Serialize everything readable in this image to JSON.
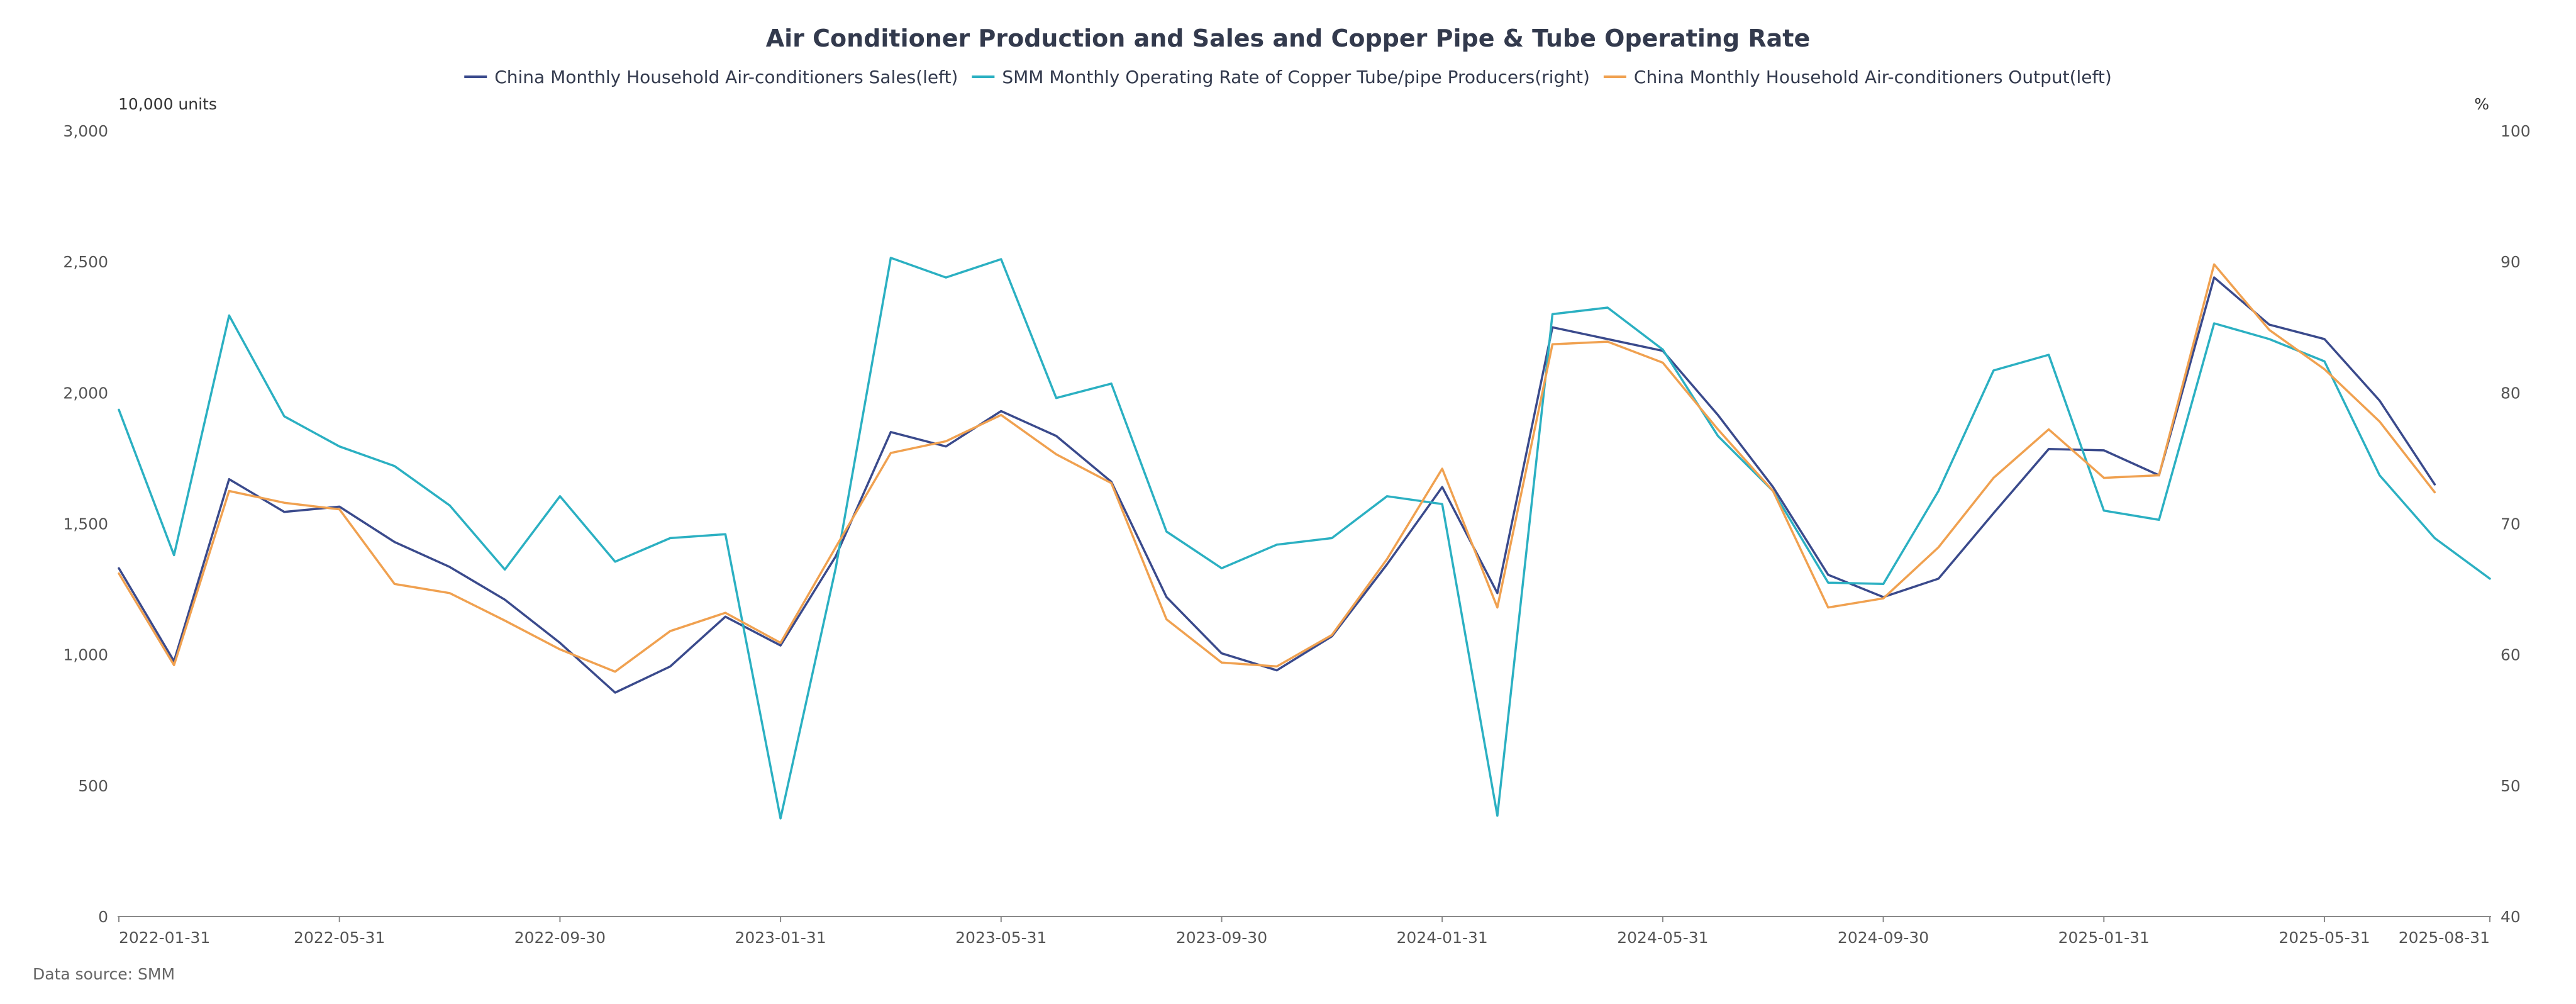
{
  "chart_data": {
    "type": "line",
    "title": "Air Conditioner Production and Sales and Copper Pipe & Tube Operating Rate",
    "left_axis_unit": "10,000 units",
    "right_axis_unit": "%",
    "left_ylim": [
      0,
      3000
    ],
    "right_ylim": [
      40,
      100
    ],
    "left_ticks": [
      "0",
      "500",
      "1,000",
      "1,500",
      "2,000",
      "2,500",
      "3,000"
    ],
    "right_ticks": [
      "40",
      "50",
      "60",
      "70",
      "80",
      "90",
      "100"
    ],
    "x_tick_labels": [
      "2022-01-31",
      "2022-05-31",
      "2022-09-30",
      "2023-01-31",
      "2023-05-31",
      "2023-09-30",
      "2024-01-31",
      "2024-05-31",
      "2024-09-30",
      "2025-01-31",
      "2025-05-31",
      "2025-08-31"
    ],
    "x": [
      "2022-01-31",
      "2022-02-28",
      "2022-03-31",
      "2022-04-30",
      "2022-05-31",
      "2022-06-30",
      "2022-07-31",
      "2022-08-31",
      "2022-09-30",
      "2022-10-31",
      "2022-11-30",
      "2022-12-31",
      "2023-01-31",
      "2023-02-28",
      "2023-03-31",
      "2023-04-30",
      "2023-05-31",
      "2023-06-30",
      "2023-07-31",
      "2023-08-31",
      "2023-09-30",
      "2023-10-31",
      "2023-11-30",
      "2023-12-31",
      "2024-01-31",
      "2024-02-29",
      "2024-03-31",
      "2024-04-30",
      "2024-05-31",
      "2024-06-30",
      "2024-07-31",
      "2024-08-31",
      "2024-09-30",
      "2024-10-31",
      "2024-11-30",
      "2024-12-31",
      "2025-01-31",
      "2025-02-28",
      "2025-03-31",
      "2025-04-30",
      "2025-05-31",
      "2025-06-30",
      "2025-07-31",
      "2025-08-31"
    ],
    "grid": false,
    "legend_position": "top",
    "series": [
      {
        "name": "China Monthly Household Air-conditioners Sales(left)",
        "axis": "left",
        "color": "#3a4a8c",
        "values": [
          1330,
          975,
          1670,
          1545,
          1565,
          1430,
          1335,
          1210,
          1045,
          855,
          955,
          1145,
          1035,
          1375,
          1850,
          1795,
          1930,
          1835,
          1660,
          1220,
          1005,
          940,
          1070,
          1345,
          1640,
          1235,
          2250,
          2205,
          2160,
          1915,
          1640,
          1305,
          1220,
          1290,
          1540,
          1785,
          1780,
          1685,
          2440,
          2260,
          2205,
          1970,
          1650,
          null
        ]
      },
      {
        "name": "SMM Monthly Operating Rate of Copper Tube/pipe Producers(right)",
        "axis": "right",
        "color": "#2bb0c2",
        "values": [
          78.7,
          67.6,
          85.9,
          78.2,
          75.9,
          74.4,
          71.4,
          66.5,
          72.1,
          67.1,
          68.9,
          69.2,
          47.5,
          66.6,
          90.3,
          88.8,
          90.2,
          79.6,
          80.7,
          69.4,
          66.6,
          68.4,
          68.9,
          72.1,
          71.5,
          47.7,
          86.0,
          86.5,
          83.3,
          76.7,
          72.5,
          65.5,
          65.4,
          72.5,
          81.7,
          82.9,
          71.0,
          70.3,
          85.3,
          84.1,
          82.4,
          73.7,
          68.9,
          65.8
        ]
      },
      {
        "name": "China Monthly Household Air-conditioners Output(left)",
        "axis": "left",
        "color": "#f0a150",
        "values": [
          1310,
          960,
          1625,
          1580,
          1555,
          1270,
          1235,
          1130,
          1020,
          935,
          1090,
          1160,
          1045,
          1410,
          1770,
          1815,
          1915,
          1765,
          1655,
          1135,
          970,
          955,
          1075,
          1365,
          1710,
          1180,
          2185,
          2195,
          2115,
          1860,
          1625,
          1180,
          1215,
          1410,
          1675,
          1860,
          1675,
          1685,
          2490,
          2240,
          2090,
          1890,
          1620,
          null
        ]
      }
    ]
  },
  "footer": {
    "source": "Data source:  SMM"
  }
}
